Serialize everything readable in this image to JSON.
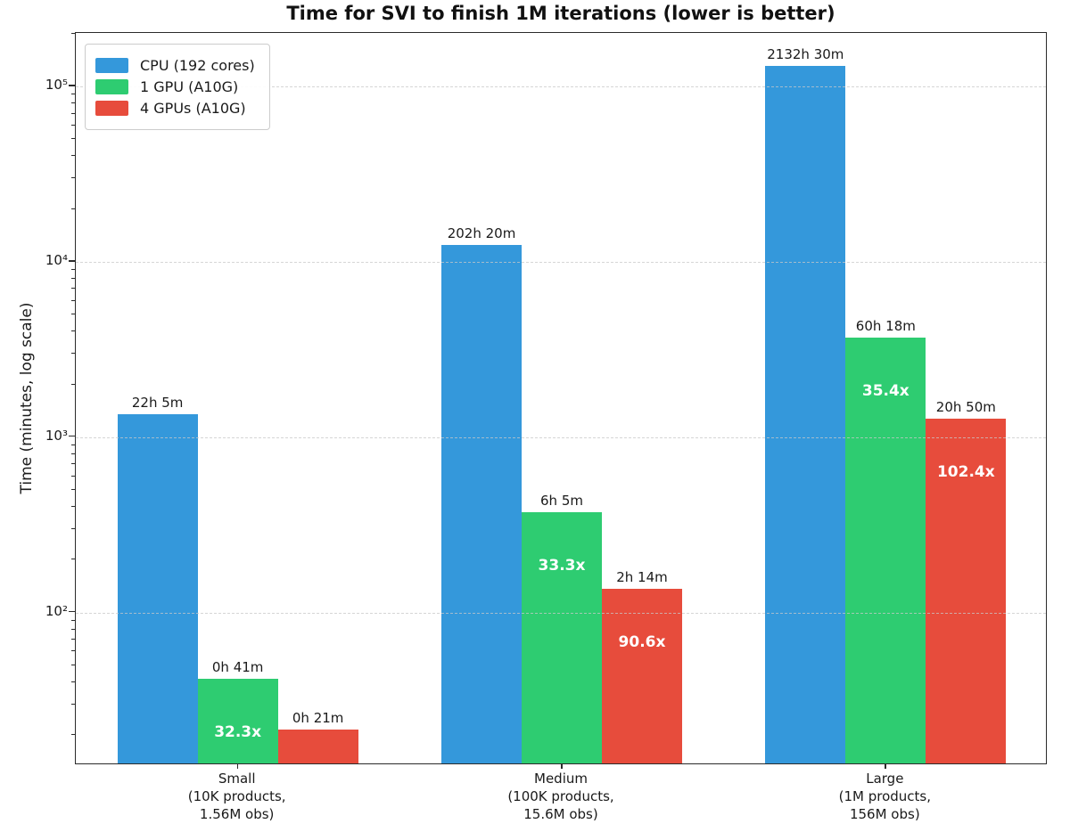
{
  "chart_data": {
    "type": "bar",
    "title": "Time for SVI to finish 1M iterations (lower is better)",
    "xlabel": "",
    "ylabel": "Time (minutes, log scale)",
    "yscale": "log",
    "ylim_minutes": [
      13.5,
      201800
    ],
    "y_major_ticks": [
      100,
      1000,
      10000,
      100000
    ],
    "y_tick_labels": [
      "10²",
      "10³",
      "10⁴",
      "10⁵"
    ],
    "grid": "horizontal dashed at major ticks",
    "legend_position": "upper left",
    "categories": [
      {
        "label_lines": [
          "Small",
          "(10K products,",
          "1.56M obs)"
        ]
      },
      {
        "label_lines": [
          "Medium",
          "(100K products,",
          "15.6M obs)"
        ]
      },
      {
        "label_lines": [
          "Large",
          "(1M products,",
          "156M obs)"
        ]
      }
    ],
    "series": [
      {
        "name": "CPU (192 cores)",
        "color": "#3498db",
        "values_minutes": [
          1325,
          12140,
          127950
        ],
        "bar_labels": [
          "22h 5m",
          "202h 20m",
          "2132h 30m"
        ],
        "speedup_labels": [
          null,
          null,
          null
        ]
      },
      {
        "name": "1 GPU (A10G)",
        "color": "#2ecc71",
        "values_minutes": [
          41,
          365,
          3618
        ],
        "bar_labels": [
          "0h 41m",
          "6h 5m",
          "60h 18m"
        ],
        "speedup_labels": [
          "32.3x",
          "33.3x",
          "35.4x"
        ]
      },
      {
        "name": "4 GPUs (A10G)",
        "color": "#e74c3c",
        "values_minutes": [
          21,
          134,
          1250
        ],
        "bar_labels": [
          "0h 21m",
          "2h 14m",
          "20h 50m"
        ],
        "speedup_labels": [
          null,
          "90.6x",
          "102.4x"
        ]
      }
    ]
  },
  "colors": {
    "cpu_bar": "#3498db",
    "gpu1_bar": "#2ecc71",
    "gpu4_bar": "#e74c3c",
    "spine": "#2b2b2b",
    "gridline": "#c9c9c9",
    "text": "#1a1a1a",
    "speedup_text": "#ffffff",
    "background": "#ffffff"
  }
}
